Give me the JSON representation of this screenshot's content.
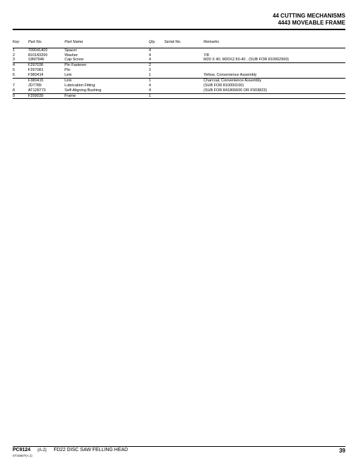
{
  "header": {
    "line1": "44 CUTTING MECHANISMS",
    "line2": "4443 MOVEABLE FRAME"
  },
  "table": {
    "columns": [
      "Key",
      "Part No.",
      "Part Name",
      "Qty.",
      "Serial No.",
      "Remarks"
    ],
    "groups": [
      [
        {
          "key": "1",
          "part": "700041400",
          "name": "Spacer",
          "qty": "4",
          "sn": "",
          "rem": ""
        },
        {
          "key": "2",
          "part": "810183200",
          "name": "Washer",
          "qty": "4",
          "sn": "",
          "rem": "7/8"
        },
        {
          "key": "3",
          "part": "19M7946",
          "name": "Cap Screw",
          "qty": "4",
          "sn": "",
          "rem": "M20 X 40, M20X2.50-40 , (SUB FOR 810962900)"
        }
      ],
      [
        {
          "key": "4",
          "part": "F297036",
          "name": "Pin Fastener",
          "qty": "2",
          "sn": "",
          "rem": ""
        },
        {
          "key": "5",
          "part": "F297081",
          "name": "Pin",
          "qty": "2",
          "sn": "",
          "rem": ""
        },
        {
          "key": "6",
          "part": "F380414",
          "name": "Link",
          "qty": "1",
          "sn": "",
          "rem": "Yellow, Convenience Assembly"
        }
      ],
      [
        {
          "key": "",
          "part": "F380415",
          "name": "Link",
          "qty": "1",
          "sn": "",
          "rem": "Charcoal, Convenience Assembly"
        },
        {
          "key": "7",
          "part": "JD7789",
          "name": "Lubrication Fitting",
          "qty": "4",
          "sn": "",
          "rem": "(SUB FOR 810000100)"
        },
        {
          "key": "8",
          "part": "AT128773",
          "name": "Self-Aligning Bushing",
          "qty": "4",
          "sn": "",
          "rem": "(SUB FOR 841806600 OR F003823)"
        }
      ],
      [
        {
          "key": "9",
          "part": "F299039",
          "name": "Frame",
          "qty": "1",
          "sn": "",
          "rem": ""
        }
      ]
    ]
  },
  "footer": {
    "pc": "PC9124",
    "rev": "(A.2)",
    "desc": "FD22 DISC SAW FELLING HEAD",
    "tiny": "ST15507(A.1)",
    "page": "39"
  },
  "styling": {
    "background_color": "#ffffff",
    "text_color": "#000000",
    "header_fontsize": 8,
    "body_fontsize": 5.5,
    "footer_fontsize": 6,
    "rule_color": "#000000"
  }
}
